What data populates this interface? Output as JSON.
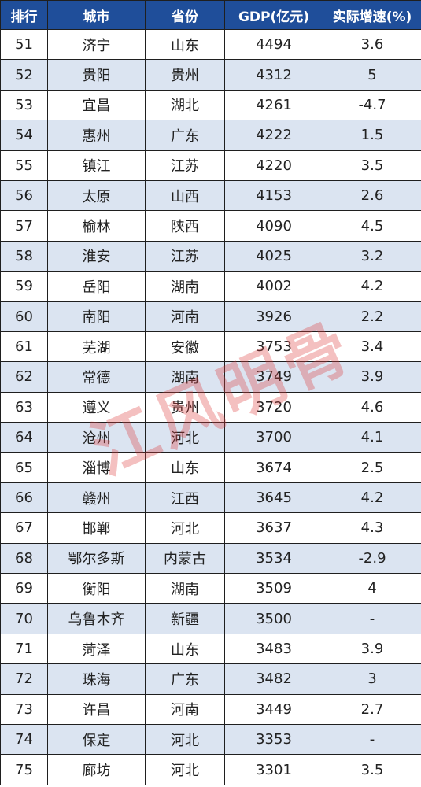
{
  "headers": [
    "排行",
    "城市",
    "省份",
    "GDP(亿元)",
    "实际增速(%)"
  ],
  "rows": [
    [
      "51",
      "济宁",
      "山东",
      "4494",
      "3.6"
    ],
    [
      "52",
      "贵阳",
      "贵州",
      "4312",
      "5"
    ],
    [
      "53",
      "宜昌",
      "湖北",
      "4261",
      "-4.7"
    ],
    [
      "54",
      "惠州",
      "广东",
      "4222",
      "1.5"
    ],
    [
      "55",
      "镇江",
      "江苏",
      "4220",
      "3.5"
    ],
    [
      "56",
      "太原",
      "山西",
      "4153",
      "2.6"
    ],
    [
      "57",
      "榆林",
      "陕西",
      "4090",
      "4.5"
    ],
    [
      "58",
      "淮安",
      "江苏",
      "4025",
      "3.2"
    ],
    [
      "59",
      "岳阳",
      "湖南",
      "4002",
      "4.2"
    ],
    [
      "60",
      "南阳",
      "河南",
      "3926",
      "2.2"
    ],
    [
      "61",
      "芜湖",
      "安徽",
      "3753",
      "3.4"
    ],
    [
      "62",
      "常德",
      "湖南",
      "3749",
      "3.9"
    ],
    [
      "63",
      "遵义",
      "贵州",
      "3720",
      "4.6"
    ],
    [
      "64",
      "沧州",
      "河北",
      "3700",
      "4.1"
    ],
    [
      "65",
      "淄博",
      "山东",
      "3674",
      "2.5"
    ],
    [
      "66",
      "赣州",
      "江西",
      "3645",
      "4.2"
    ],
    [
      "67",
      "邯郸",
      "河北",
      "3637",
      "4.3"
    ],
    [
      "68",
      "鄂尔多斯",
      "内蒙古",
      "3534",
      "-2.9"
    ],
    [
      "69",
      "衡阳",
      "湖南",
      "3509",
      "4"
    ],
    [
      "70",
      "乌鲁木齐",
      "新疆",
      "3500",
      "-"
    ],
    [
      "71",
      "菏泽",
      "山东",
      "3483",
      "3.9"
    ],
    [
      "72",
      "珠海",
      "广东",
      "3482",
      "3"
    ],
    [
      "73",
      "许昌",
      "河南",
      "3449",
      "2.7"
    ],
    [
      "74",
      "保定",
      "河北",
      "3353",
      "-"
    ],
    [
      "75",
      "廊坊",
      "河北",
      "3301",
      "3.5"
    ]
  ],
  "watermark": "江风明骨",
  "colors": {
    "header_bg": "#1f4e9a",
    "stripe": "#dbe4f1",
    "watermark": "#dc3c3c"
  }
}
